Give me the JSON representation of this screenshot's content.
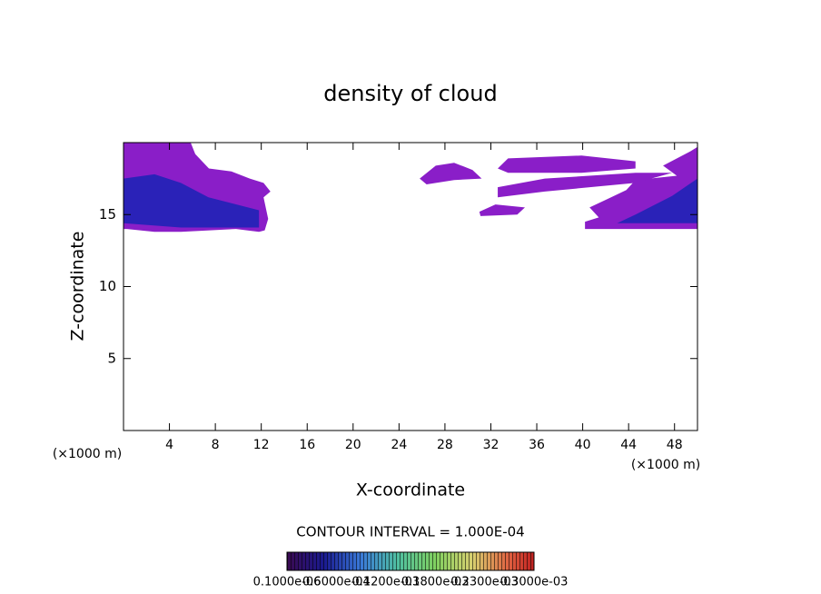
{
  "chart_data": {
    "type": "contour",
    "title": "density of cloud",
    "x_label": "X-coordinate",
    "y_label": "Z-coordinate",
    "x_unit": "(×1000 m)",
    "y_unit": "(×1000 m)",
    "xlim": [
      0,
      50
    ],
    "ylim": [
      0,
      20
    ],
    "xticks": [
      4,
      8,
      12,
      16,
      20,
      24,
      28,
      32,
      36,
      40,
      44,
      48
    ],
    "yticks": [
      5,
      10,
      15
    ],
    "regions": [
      {
        "color": "#8a1ec8",
        "x": [
          0,
          5.85,
          6.25,
          7.44,
          9.4,
          11.0,
          12.2,
          12.8,
          12.2,
          12.6,
          12.3,
          11.8,
          9.8,
          5.0,
          2.7,
          0.3,
          0
        ],
        "z": [
          20,
          20,
          19.2,
          18.2,
          18.0,
          17.5,
          17.2,
          16.6,
          16.2,
          14.7,
          13.9,
          13.8,
          14.0,
          13.8,
          13.8,
          14.0,
          14.0
        ]
      },
      {
        "color": "#2a22b8",
        "x": [
          0,
          2.7,
          5,
          7.4,
          11.8,
          11.8,
          5,
          0
        ],
        "z": [
          17.5,
          17.8,
          17.2,
          16.2,
          15.3,
          14.1,
          14.1,
          14.4
        ]
      },
      {
        "color": "#8a1ec8",
        "x": [
          50,
          49.4,
          47,
          48.2,
          44.6,
          43.8,
          42.2,
          40.6,
          41.4,
          40.2,
          40.2,
          50
        ],
        "z": [
          19.7,
          19.4,
          18.4,
          17.7,
          17.4,
          16.7,
          16.1,
          15.5,
          14.8,
          14.5,
          14.0,
          14.0
        ]
      },
      {
        "color": "#2a22b8",
        "x": [
          50,
          47.8,
          44.6,
          43,
          50
        ],
        "z": [
          17.5,
          16.3,
          15.0,
          14.4,
          14.4
        ]
      },
      {
        "color": "#8a1ec8",
        "x": [
          25.8,
          27.2,
          28.8,
          30.4,
          31.2,
          28.8,
          26.4
        ],
        "z": [
          17.5,
          18.4,
          18.6,
          18.1,
          17.5,
          17.4,
          17.1
        ]
      },
      {
        "color": "#8a1ec8",
        "x": [
          32.6,
          33.5,
          39.9,
          44.6,
          44.6,
          39.9,
          33.5
        ],
        "z": [
          18.2,
          18.9,
          19.1,
          18.7,
          18.2,
          17.9,
          17.9
        ]
      },
      {
        "color": "#8a1ec8",
        "x": [
          32.6,
          36.7,
          44.6,
          47.8,
          44.6,
          36.7,
          32.6
        ],
        "z": [
          16.9,
          17.5,
          17.9,
          17.9,
          17.2,
          16.6,
          16.2
        ]
      },
      {
        "color": "#8a1ec8",
        "x": [
          31,
          32.4,
          34.97,
          34.3,
          31.1
        ],
        "z": [
          15.2,
          15.7,
          15.5,
          15.0,
          14.9
        ]
      }
    ],
    "contour_interval": "CONTOUR INTERVAL = 1.000E-04",
    "colorbar_labels": [
      "0.1000e-06",
      "0.6000e-04",
      "0.1200e-03",
      "0.1800e-03",
      "0.2300e-03",
      "0.3000e-03"
    ]
  }
}
